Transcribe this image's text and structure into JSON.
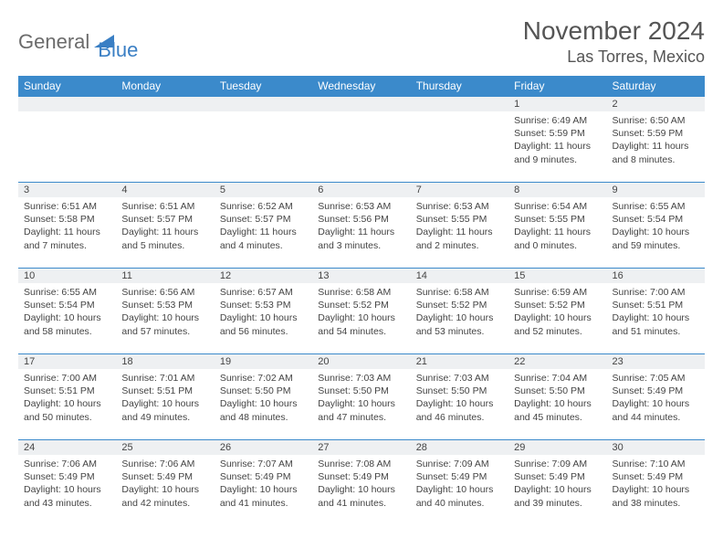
{
  "logo": {
    "text1": "General",
    "text2": "Blue"
  },
  "title": "November 2024",
  "location": "Las Torres, Mexico",
  "colors": {
    "header_bg": "#3b8acb",
    "header_text": "#ffffff",
    "daynum_bg": "#eef0f2",
    "border": "#3b8acb",
    "logo_gray": "#6b6b6b",
    "logo_blue": "#3a7fc4"
  },
  "dayNames": [
    "Sunday",
    "Monday",
    "Tuesday",
    "Wednesday",
    "Thursday",
    "Friday",
    "Saturday"
  ],
  "weeks": [
    [
      {
        "n": "",
        "sr": "",
        "ss": "",
        "dl": ""
      },
      {
        "n": "",
        "sr": "",
        "ss": "",
        "dl": ""
      },
      {
        "n": "",
        "sr": "",
        "ss": "",
        "dl": ""
      },
      {
        "n": "",
        "sr": "",
        "ss": "",
        "dl": ""
      },
      {
        "n": "",
        "sr": "",
        "ss": "",
        "dl": ""
      },
      {
        "n": "1",
        "sr": "Sunrise: 6:49 AM",
        "ss": "Sunset: 5:59 PM",
        "dl": "Daylight: 11 hours and 9 minutes."
      },
      {
        "n": "2",
        "sr": "Sunrise: 6:50 AM",
        "ss": "Sunset: 5:59 PM",
        "dl": "Daylight: 11 hours and 8 minutes."
      }
    ],
    [
      {
        "n": "3",
        "sr": "Sunrise: 6:51 AM",
        "ss": "Sunset: 5:58 PM",
        "dl": "Daylight: 11 hours and 7 minutes."
      },
      {
        "n": "4",
        "sr": "Sunrise: 6:51 AM",
        "ss": "Sunset: 5:57 PM",
        "dl": "Daylight: 11 hours and 5 minutes."
      },
      {
        "n": "5",
        "sr": "Sunrise: 6:52 AM",
        "ss": "Sunset: 5:57 PM",
        "dl": "Daylight: 11 hours and 4 minutes."
      },
      {
        "n": "6",
        "sr": "Sunrise: 6:53 AM",
        "ss": "Sunset: 5:56 PM",
        "dl": "Daylight: 11 hours and 3 minutes."
      },
      {
        "n": "7",
        "sr": "Sunrise: 6:53 AM",
        "ss": "Sunset: 5:55 PM",
        "dl": "Daylight: 11 hours and 2 minutes."
      },
      {
        "n": "8",
        "sr": "Sunrise: 6:54 AM",
        "ss": "Sunset: 5:55 PM",
        "dl": "Daylight: 11 hours and 0 minutes."
      },
      {
        "n": "9",
        "sr": "Sunrise: 6:55 AM",
        "ss": "Sunset: 5:54 PM",
        "dl": "Daylight: 10 hours and 59 minutes."
      }
    ],
    [
      {
        "n": "10",
        "sr": "Sunrise: 6:55 AM",
        "ss": "Sunset: 5:54 PM",
        "dl": "Daylight: 10 hours and 58 minutes."
      },
      {
        "n": "11",
        "sr": "Sunrise: 6:56 AM",
        "ss": "Sunset: 5:53 PM",
        "dl": "Daylight: 10 hours and 57 minutes."
      },
      {
        "n": "12",
        "sr": "Sunrise: 6:57 AM",
        "ss": "Sunset: 5:53 PM",
        "dl": "Daylight: 10 hours and 56 minutes."
      },
      {
        "n": "13",
        "sr": "Sunrise: 6:58 AM",
        "ss": "Sunset: 5:52 PM",
        "dl": "Daylight: 10 hours and 54 minutes."
      },
      {
        "n": "14",
        "sr": "Sunrise: 6:58 AM",
        "ss": "Sunset: 5:52 PM",
        "dl": "Daylight: 10 hours and 53 minutes."
      },
      {
        "n": "15",
        "sr": "Sunrise: 6:59 AM",
        "ss": "Sunset: 5:52 PM",
        "dl": "Daylight: 10 hours and 52 minutes."
      },
      {
        "n": "16",
        "sr": "Sunrise: 7:00 AM",
        "ss": "Sunset: 5:51 PM",
        "dl": "Daylight: 10 hours and 51 minutes."
      }
    ],
    [
      {
        "n": "17",
        "sr": "Sunrise: 7:00 AM",
        "ss": "Sunset: 5:51 PM",
        "dl": "Daylight: 10 hours and 50 minutes."
      },
      {
        "n": "18",
        "sr": "Sunrise: 7:01 AM",
        "ss": "Sunset: 5:51 PM",
        "dl": "Daylight: 10 hours and 49 minutes."
      },
      {
        "n": "19",
        "sr": "Sunrise: 7:02 AM",
        "ss": "Sunset: 5:50 PM",
        "dl": "Daylight: 10 hours and 48 minutes."
      },
      {
        "n": "20",
        "sr": "Sunrise: 7:03 AM",
        "ss": "Sunset: 5:50 PM",
        "dl": "Daylight: 10 hours and 47 minutes."
      },
      {
        "n": "21",
        "sr": "Sunrise: 7:03 AM",
        "ss": "Sunset: 5:50 PM",
        "dl": "Daylight: 10 hours and 46 minutes."
      },
      {
        "n": "22",
        "sr": "Sunrise: 7:04 AM",
        "ss": "Sunset: 5:50 PM",
        "dl": "Daylight: 10 hours and 45 minutes."
      },
      {
        "n": "23",
        "sr": "Sunrise: 7:05 AM",
        "ss": "Sunset: 5:49 PM",
        "dl": "Daylight: 10 hours and 44 minutes."
      }
    ],
    [
      {
        "n": "24",
        "sr": "Sunrise: 7:06 AM",
        "ss": "Sunset: 5:49 PM",
        "dl": "Daylight: 10 hours and 43 minutes."
      },
      {
        "n": "25",
        "sr": "Sunrise: 7:06 AM",
        "ss": "Sunset: 5:49 PM",
        "dl": "Daylight: 10 hours and 42 minutes."
      },
      {
        "n": "26",
        "sr": "Sunrise: 7:07 AM",
        "ss": "Sunset: 5:49 PM",
        "dl": "Daylight: 10 hours and 41 minutes."
      },
      {
        "n": "27",
        "sr": "Sunrise: 7:08 AM",
        "ss": "Sunset: 5:49 PM",
        "dl": "Daylight: 10 hours and 41 minutes."
      },
      {
        "n": "28",
        "sr": "Sunrise: 7:09 AM",
        "ss": "Sunset: 5:49 PM",
        "dl": "Daylight: 10 hours and 40 minutes."
      },
      {
        "n": "29",
        "sr": "Sunrise: 7:09 AM",
        "ss": "Sunset: 5:49 PM",
        "dl": "Daylight: 10 hours and 39 minutes."
      },
      {
        "n": "30",
        "sr": "Sunrise: 7:10 AM",
        "ss": "Sunset: 5:49 PM",
        "dl": "Daylight: 10 hours and 38 minutes."
      }
    ]
  ]
}
